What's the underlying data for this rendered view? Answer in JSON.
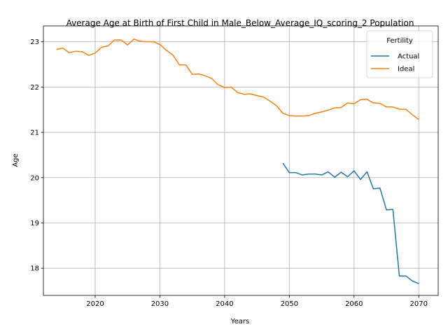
{
  "chart_data": {
    "type": "line",
    "title": "Average Age at Birth of First Child in Male_Below_Average_IQ_scoring_2 Population",
    "xlabel": "Years",
    "ylabel": "Age",
    "xlim": [
      2012,
      2073
    ],
    "ylim": [
      17.4,
      23.35
    ],
    "x_ticks": [
      2020,
      2030,
      2040,
      2050,
      2060,
      2070
    ],
    "y_ticks": [
      18,
      19,
      20,
      21,
      22,
      23
    ],
    "grid": true,
    "legend": {
      "title": "Fertility",
      "position": "top-right"
    },
    "series": [
      {
        "name": "Actual",
        "color": "#1f77b4",
        "x": [
          2049,
          2050,
          2051,
          2052,
          2053,
          2054,
          2055,
          2056,
          2057,
          2058,
          2059,
          2060,
          2061,
          2062,
          2063,
          2064,
          2065,
          2066,
          2067,
          2068,
          2069,
          2070
        ],
        "y": [
          20.32,
          20.11,
          20.11,
          20.06,
          20.08,
          20.08,
          20.06,
          20.13,
          20.01,
          20.12,
          20.02,
          20.15,
          19.96,
          20.13,
          19.75,
          19.77,
          19.29,
          19.3,
          17.83,
          17.83,
          17.72,
          17.66
        ]
      },
      {
        "name": "Ideal",
        "color": "#ff7f0e",
        "x": [
          2014,
          2015,
          2016,
          2017,
          2018,
          2019,
          2020,
          2021,
          2022,
          2023,
          2024,
          2025,
          2026,
          2027,
          2028,
          2029,
          2030,
          2031,
          2032,
          2033,
          2034,
          2035,
          2036,
          2037,
          2038,
          2039,
          2040,
          2041,
          2042,
          2043,
          2044,
          2045,
          2046,
          2047,
          2048,
          2049,
          2050,
          2051,
          2052,
          2053,
          2054,
          2055,
          2056,
          2057,
          2058,
          2059,
          2060,
          2061,
          2062,
          2063,
          2064,
          2065,
          2066,
          2067,
          2068,
          2069,
          2070
        ],
        "y": [
          22.83,
          22.86,
          22.76,
          22.79,
          22.78,
          22.7,
          22.75,
          22.88,
          22.91,
          23.04,
          23.04,
          22.93,
          23.06,
          23.01,
          23.0,
          23.0,
          22.94,
          22.81,
          22.71,
          22.49,
          22.49,
          22.28,
          22.29,
          22.25,
          22.19,
          22.05,
          21.99,
          22.0,
          21.88,
          21.84,
          21.85,
          21.81,
          21.78,
          21.69,
          21.59,
          21.42,
          21.37,
          21.36,
          21.36,
          21.37,
          21.42,
          21.45,
          21.49,
          21.54,
          21.55,
          21.65,
          21.63,
          21.72,
          21.73,
          21.65,
          21.64,
          21.56,
          21.56,
          21.51,
          21.51,
          21.39,
          21.28
        ]
      }
    ]
  }
}
